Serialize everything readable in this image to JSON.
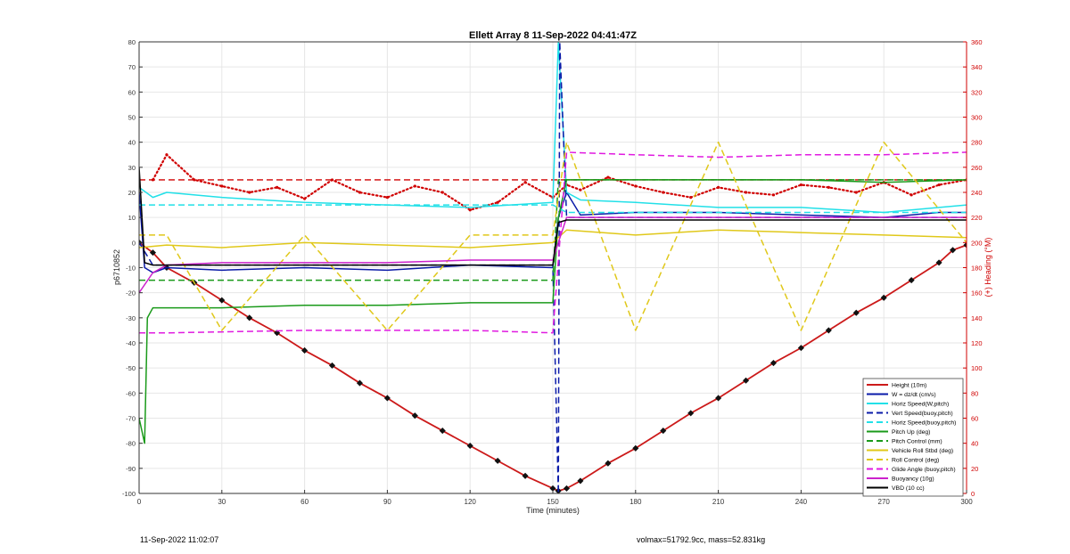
{
  "chart_data": {
    "type": "line",
    "title": "Ellett Array 8 11-Sep-2022 04:41:47Z",
    "xlabel": "Time (minutes)",
    "ylabel": "p6710852",
    "y2label": "(+) Heading (°M)",
    "xlim": [
      0,
      300
    ],
    "ylim": [
      -100,
      80
    ],
    "y2lim": [
      0,
      360
    ],
    "xticks": [
      0,
      30,
      60,
      90,
      120,
      150,
      180,
      210,
      240,
      270,
      300
    ],
    "yticks": [
      -100,
      -90,
      -80,
      -70,
      -60,
      -50,
      -40,
      -30,
      -20,
      -10,
      0,
      10,
      20,
      30,
      40,
      50,
      60,
      70,
      80
    ],
    "y2ticks": [
      0,
      20,
      40,
      60,
      80,
      100,
      120,
      140,
      160,
      180,
      200,
      220,
      240,
      260,
      280,
      300,
      320,
      340,
      360
    ],
    "grid": true,
    "legend_position": "bottom-right",
    "colors": {
      "height": "#cc1a1a",
      "w": "#0a1aa8",
      "horiz": "#22e0e8",
      "pitch": "#1a9a1a",
      "roll": "#e0c81a",
      "glide": "#e01ae0",
      "buoy": "#cc22cc",
      "vbd": "#000000",
      "heading": "#d00000",
      "axis_right": "#d00000"
    },
    "series": [
      {
        "name": "Height (10m)",
        "color": "#cc1a1a",
        "style": "solid",
        "x": [
          0,
          5,
          10,
          20,
          30,
          40,
          50,
          60,
          70,
          80,
          90,
          100,
          110,
          120,
          130,
          140,
          150,
          152,
          155,
          160,
          170,
          180,
          190,
          200,
          210,
          220,
          230,
          240,
          250,
          260,
          270,
          280,
          290,
          295,
          300
        ],
        "y": [
          0,
          -4,
          -10,
          -16,
          -23,
          -30,
          -36,
          -43,
          -49,
          -56,
          -62,
          -69,
          -75,
          -81,
          -87,
          -93,
          -98,
          -99,
          -98,
          -95,
          -88,
          -82,
          -75,
          -68,
          -62,
          -55,
          -48,
          -42,
          -35,
          -28,
          -22,
          -15,
          -8,
          -3,
          -1
        ]
      },
      {
        "name": "W = dz/dt (cm/s)",
        "color": "#0a1aa8",
        "style": "solid",
        "x": [
          0,
          2,
          5,
          10,
          30,
          60,
          90,
          120,
          150,
          152,
          155,
          160,
          180,
          210,
          240,
          270,
          290,
          300
        ],
        "y": [
          20,
          -10,
          -12,
          -10,
          -11,
          -10,
          -11,
          -9,
          -10,
          10,
          20,
          11,
          12,
          12,
          11,
          10,
          12,
          12
        ]
      },
      {
        "name": "Horiz Speed(W,pitch)",
        "color": "#22e0e8",
        "style": "solid",
        "x": [
          0,
          5,
          10,
          30,
          60,
          90,
          120,
          150,
          152,
          155,
          160,
          180,
          210,
          240,
          270,
          300
        ],
        "y": [
          22,
          18,
          20,
          18,
          16,
          15,
          14,
          16,
          80,
          20,
          17,
          16,
          14,
          14,
          12,
          15
        ]
      },
      {
        "name": "Vert Speed(buoy,pitch)",
        "color": "#0a1aa8",
        "style": "dashed",
        "x": [
          0,
          5,
          150,
          152,
          152.5,
          155,
          300
        ],
        "y": [
          0,
          -9,
          -9,
          -100,
          80,
          10,
          10
        ]
      },
      {
        "name": "Horiz Speed(buoy,pitch)",
        "color": "#22e0e8",
        "style": "dashed",
        "x": [
          0,
          150,
          155,
          300
        ],
        "y": [
          15,
          15,
          12,
          12
        ]
      },
      {
        "name": "Pitch Up (deg)",
        "color": "#1a9a1a",
        "style": "solid",
        "x": [
          0,
          2,
          3,
          5,
          10,
          30,
          60,
          90,
          120,
          150,
          152,
          155,
          180,
          210,
          240,
          270,
          300
        ],
        "y": [
          -70,
          -80,
          -30,
          -26,
          -26,
          -26,
          -25,
          -25,
          -24,
          -24,
          10,
          25,
          25,
          25,
          25,
          24,
          25
        ]
      },
      {
        "name": "Pitch Control (mm)",
        "color": "#1a9a1a",
        "style": "dashed",
        "x": [
          0,
          150,
          152,
          300
        ],
        "y": [
          -15,
          -15,
          25,
          25
        ]
      },
      {
        "name": "Vehicle Roll Stbd (deg)",
        "color": "#e0c81a",
        "style": "solid",
        "x": [
          0,
          10,
          30,
          60,
          90,
          120,
          150,
          155,
          180,
          210,
          240,
          270,
          300
        ],
        "y": [
          -2,
          -1,
          -2,
          0,
          -1,
          -2,
          0,
          5,
          3,
          5,
          4,
          3,
          2
        ]
      },
      {
        "name": "Roll Control (deg)",
        "color": "#e0c81a",
        "style": "dashed",
        "x": [
          0,
          10,
          30,
          60,
          90,
          120,
          150,
          155,
          180,
          210,
          240,
          270,
          300
        ],
        "y": [
          3,
          3,
          -35,
          3,
          -35,
          3,
          3,
          40,
          -35,
          40,
          -35,
          40,
          0
        ]
      },
      {
        "name": "Glide Angle (buoy,pitch)",
        "color": "#e01ae0",
        "style": "dashed",
        "x": [
          0,
          10,
          60,
          120,
          150,
          155,
          180,
          210,
          240,
          270,
          300
        ],
        "y": [
          -36,
          -36,
          -35,
          -35,
          -36,
          36,
          35,
          34,
          35,
          35,
          36
        ]
      },
      {
        "name": "Buoyancy (10g)",
        "color": "#cc22cc",
        "style": "solid",
        "x": [
          0,
          5,
          10,
          30,
          60,
          90,
          120,
          150,
          152,
          155,
          180,
          210,
          240,
          270,
          300
        ],
        "y": [
          -20,
          -12,
          -9,
          -8,
          -8,
          -8,
          -7,
          -7,
          0,
          10,
          10,
          10,
          10,
          10,
          10
        ]
      },
      {
        "name": "VBD (10 cc)",
        "color": "#000000",
        "style": "solid",
        "x": [
          0,
          2,
          5,
          150,
          152,
          155,
          300
        ],
        "y": [
          30,
          -8,
          -9,
          -9,
          8,
          9,
          9
        ]
      }
    ],
    "heading_series": {
      "axis": "right",
      "color": "#d00000",
      "style": "dotted",
      "x": [
        5,
        10,
        20,
        30,
        40,
        50,
        60,
        70,
        80,
        90,
        100,
        110,
        120,
        130,
        140,
        150,
        155,
        160,
        170,
        180,
        190,
        200,
        210,
        220,
        230,
        240,
        250,
        260,
        270,
        280,
        290,
        300
      ],
      "y": [
        250,
        270,
        250,
        245,
        240,
        244,
        235,
        250,
        240,
        236,
        245,
        240,
        226,
        232,
        248,
        236,
        246,
        242,
        252,
        245,
        240,
        236,
        244,
        240,
        238,
        246,
        244,
        240,
        248,
        238,
        246,
        250
      ]
    },
    "heading_ref": {
      "axis": "right",
      "color": "#d00000",
      "style": "dashed",
      "y": 250
    }
  },
  "footer": {
    "timestamp": "11-Sep-2022 11:02:07",
    "mass_info": "volmax=51792.9cc, mass=52.831kg"
  }
}
